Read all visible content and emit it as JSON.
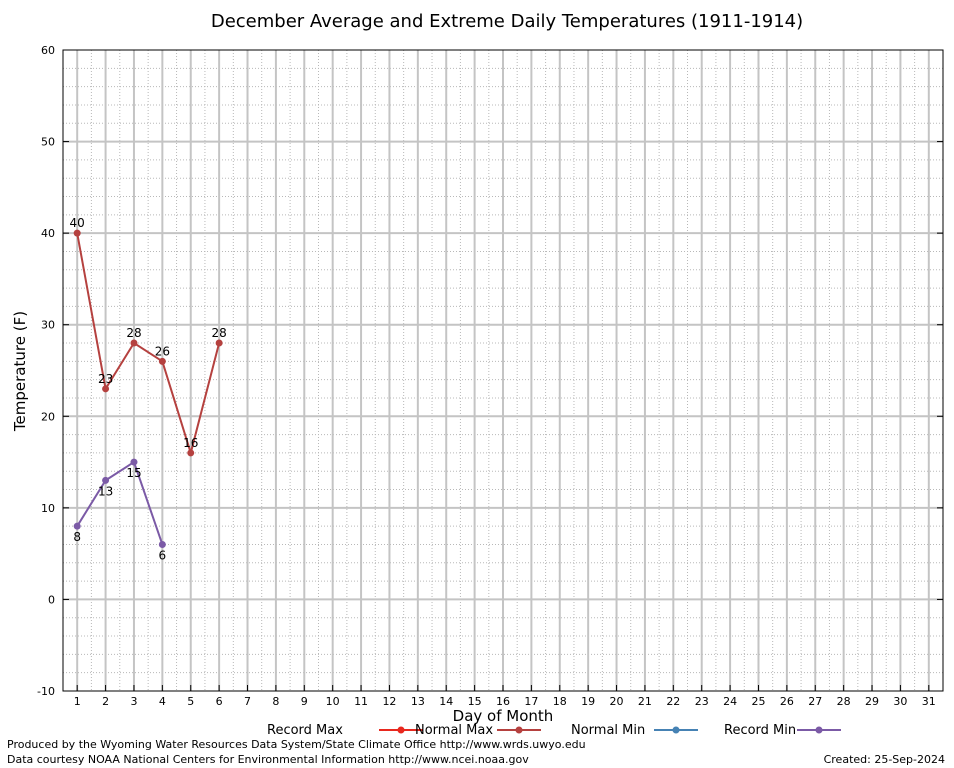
{
  "chart_data": {
    "type": "line",
    "title": "December Average and Extreme Daily Temperatures (1911-1914)",
    "xlabel": "Day of Month",
    "ylabel": "Temperature (F)",
    "xlim": [
      0.5,
      31.5
    ],
    "ylim": [
      -10,
      60
    ],
    "x_ticks": [
      "1",
      "2",
      "3",
      "4",
      "5",
      "6",
      "7",
      "8",
      "9",
      "10",
      "11",
      "12",
      "13",
      "14",
      "15",
      "16",
      "17",
      "18",
      "19",
      "20",
      "21",
      "22",
      "23",
      "24",
      "25",
      "26",
      "27",
      "28",
      "29",
      "30",
      "31"
    ],
    "y_ticks": [
      "60",
      "50",
      "40",
      "30",
      "20",
      "10",
      "0",
      "-10"
    ],
    "grid": true,
    "legend_position": "bottom",
    "legend": [
      {
        "name": "Record Max",
        "color": "#e8281e"
      },
      {
        "name": "Normal Max",
        "color": "#b5413f"
      },
      {
        "name": "Normal Min",
        "color": "#4682b4"
      },
      {
        "name": "Record Min",
        "color": "#7b5aa6"
      }
    ],
    "series": [
      {
        "name": "Normal Max",
        "color": "#b5413f",
        "points": [
          [
            1,
            40
          ],
          [
            2,
            23
          ],
          [
            3,
            28
          ],
          [
            4,
            26
          ],
          [
            5,
            16
          ],
          [
            6,
            28
          ]
        ],
        "labels": [
          "40",
          "23",
          "28",
          "26",
          "16",
          "28"
        ]
      },
      {
        "name": "Record Min",
        "color": "#7b5aa6",
        "points": [
          [
            1,
            8
          ],
          [
            2,
            13
          ],
          [
            3,
            15
          ],
          [
            4,
            6
          ]
        ],
        "labels": [
          "8",
          "13",
          "15",
          "6"
        ]
      }
    ]
  },
  "footer": {
    "produced_by": "Produced by the Wyoming Water Resources Data System/State Climate Office http://www.wrds.uwyo.edu",
    "data_courtesy": "Data courtesy NOAA National Centers for Environmental Information http://www.ncei.noaa.gov",
    "created": "Created: 25-Sep-2024"
  }
}
